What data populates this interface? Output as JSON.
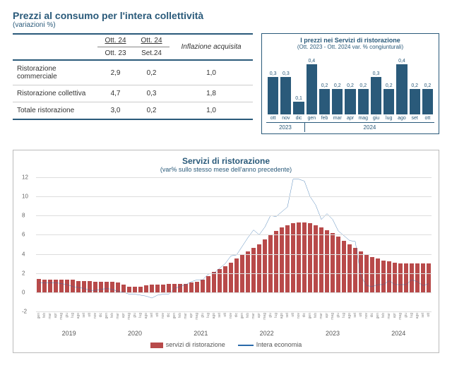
{
  "title": "Prezzi al consumo per l'intera collettività",
  "subtitle": "(variazioni %)",
  "table": {
    "col_headers": [
      {
        "l1": "Ott. 24",
        "l2": "Ott. 23"
      },
      {
        "l1": "Ott. 24",
        "l2": "Set.24"
      }
    ],
    "infl_header": "Inflazione acquisita",
    "rows": [
      {
        "label": "Ristorazione commerciale",
        "v1": "2,9",
        "v2": "0,2",
        "v3": "1,0"
      },
      {
        "label": "Ristorazione collettiva",
        "v1": "4,7",
        "v2": "0,3",
        "v3": "1,8"
      },
      {
        "label": "Totale ristorazione",
        "v1": "3,0",
        "v2": "0,2",
        "v3": "1,0"
      }
    ]
  },
  "chart1": {
    "title": "I prezzi nei Servizi di ristorazione",
    "subtitle": "(Ott. 2023 - Ott. 2024 var. % congiunturali)",
    "bar_color": "#2a5a7a",
    "max": 0.45,
    "months": [
      "ott",
      "nov",
      "dic",
      "gen",
      "feb",
      "mar",
      "apr",
      "mag",
      "giu",
      "lug",
      "ago",
      "set",
      "ott"
    ],
    "values": [
      0.3,
      0.3,
      0.1,
      0.4,
      0.2,
      0.2,
      0.2,
      0.2,
      0.3,
      0.2,
      0.4,
      0.2,
      0.2
    ],
    "labels": [
      "0,3",
      "0,3",
      "0,1",
      "0,4",
      "0,2",
      "0,2",
      "0,2",
      "0,2",
      "0,3",
      "0,2",
      "0,4",
      "0,2",
      "0,2"
    ],
    "year_splits": [
      {
        "label": "2023",
        "span": 3
      },
      {
        "label": "2024",
        "span": 10
      }
    ]
  },
  "chart2": {
    "title": "Servizi di ristorazione",
    "subtitle": "(var% sullo stesso mese dell'anno precedente)",
    "bar_color": "#b84a4a",
    "line_color": "#2a6aaa",
    "ymin": -2,
    "ymax": 12,
    "ystep": 2,
    "months_short": [
      "gen",
      "feb",
      "mar",
      "apr",
      "mag",
      "giu",
      "lug",
      "ago",
      "set",
      "ott",
      "nov",
      "dic"
    ],
    "years": [
      "2019",
      "2020",
      "2021",
      "2022",
      "2023",
      "2024"
    ],
    "bars": [
      1.4,
      1.3,
      1.3,
      1.3,
      1.3,
      1.3,
      1.3,
      1.2,
      1.2,
      1.2,
      1.1,
      1.1,
      1.1,
      1.1,
      1.0,
      0.8,
      0.6,
      0.6,
      0.6,
      0.7,
      0.8,
      0.8,
      0.8,
      0.9,
      0.9,
      0.9,
      0.9,
      1.0,
      1.1,
      1.3,
      1.7,
      2.1,
      2.4,
      2.7,
      3.1,
      3.5,
      3.9,
      4.3,
      4.6,
      5.0,
      5.5,
      6.0,
      6.4,
      6.8,
      7.0,
      7.2,
      7.3,
      7.3,
      7.2,
      7.0,
      6.8,
      6.5,
      6.2,
      5.8,
      5.4,
      5.0,
      4.6,
      4.3,
      4.0,
      3.7,
      3.5,
      3.3,
      3.2,
      3.1,
      3.0,
      3.0,
      3.0,
      3.0,
      3.0,
      3.0
    ],
    "line": [
      1.0,
      1.0,
      1.0,
      1.0,
      0.9,
      0.8,
      0.6,
      0.5,
      0.4,
      0.2,
      0.2,
      0.3,
      0.4,
      0.3,
      0.1,
      0.0,
      -0.2,
      -0.2,
      -0.3,
      -0.4,
      -0.6,
      -0.3,
      -0.2,
      -0.2,
      0.4,
      0.6,
      0.8,
      1.1,
      1.3,
      1.3,
      1.9,
      2.0,
      2.5,
      3.0,
      3.8,
      3.9,
      4.8,
      5.7,
      6.5,
      6.0,
      6.8,
      8.0,
      7.9,
      8.4,
      8.9,
      11.8,
      11.8,
      11.6,
      10.0,
      9.1,
      7.6,
      8.2,
      7.6,
      6.4,
      5.9,
      5.4,
      5.3,
      1.7,
      0.7,
      0.6,
      0.8,
      0.8,
      1.2,
      0.8,
      0.8,
      0.8,
      1.3,
      1.1,
      0.7,
      0.9
    ],
    "end_month_index": 10,
    "legend": {
      "bars": "servizi di ristorazione",
      "line": "Intera economia"
    }
  }
}
